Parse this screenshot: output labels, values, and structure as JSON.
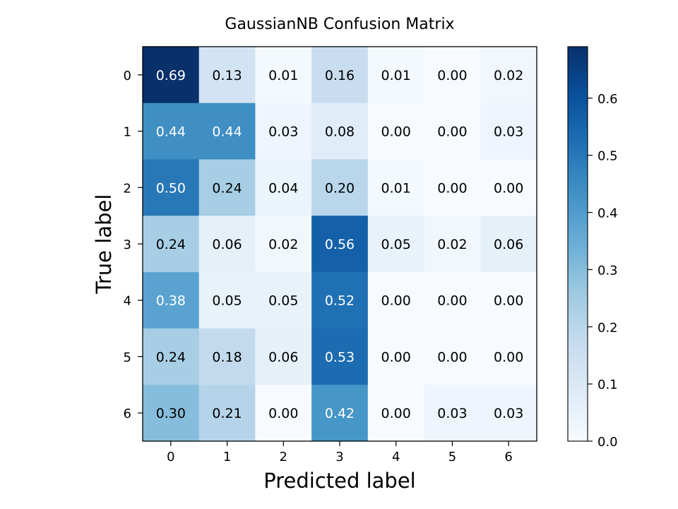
{
  "chart_data": {
    "type": "heatmap",
    "title": "GaussianNB Confusion Matrix",
    "xlabel": "Predicted label",
    "ylabel": "True label",
    "x_categories": [
      "0",
      "1",
      "2",
      "3",
      "4",
      "5",
      "6"
    ],
    "y_categories": [
      "0",
      "1",
      "2",
      "3",
      "4",
      "5",
      "6"
    ],
    "values": [
      [
        0.69,
        0.13,
        0.01,
        0.16,
        0.01,
        0.0,
        0.02
      ],
      [
        0.44,
        0.44,
        0.03,
        0.08,
        0.0,
        0.0,
        0.03
      ],
      [
        0.5,
        0.24,
        0.04,
        0.2,
        0.01,
        0.0,
        0.0
      ],
      [
        0.24,
        0.06,
        0.02,
        0.56,
        0.05,
        0.02,
        0.06
      ],
      [
        0.38,
        0.05,
        0.05,
        0.52,
        0.0,
        0.0,
        0.0
      ],
      [
        0.24,
        0.18,
        0.06,
        0.53,
        0.0,
        0.0,
        0.0
      ],
      [
        0.3,
        0.21,
        0.0,
        0.42,
        0.0,
        0.03,
        0.03
      ]
    ],
    "colormap": "Blues",
    "colorbar": {
      "range": [
        0.0,
        0.69
      ],
      "ticks": [
        "0.0",
        "0.1",
        "0.2",
        "0.3",
        "0.4",
        "0.5",
        "0.6"
      ]
    },
    "grid": false
  }
}
